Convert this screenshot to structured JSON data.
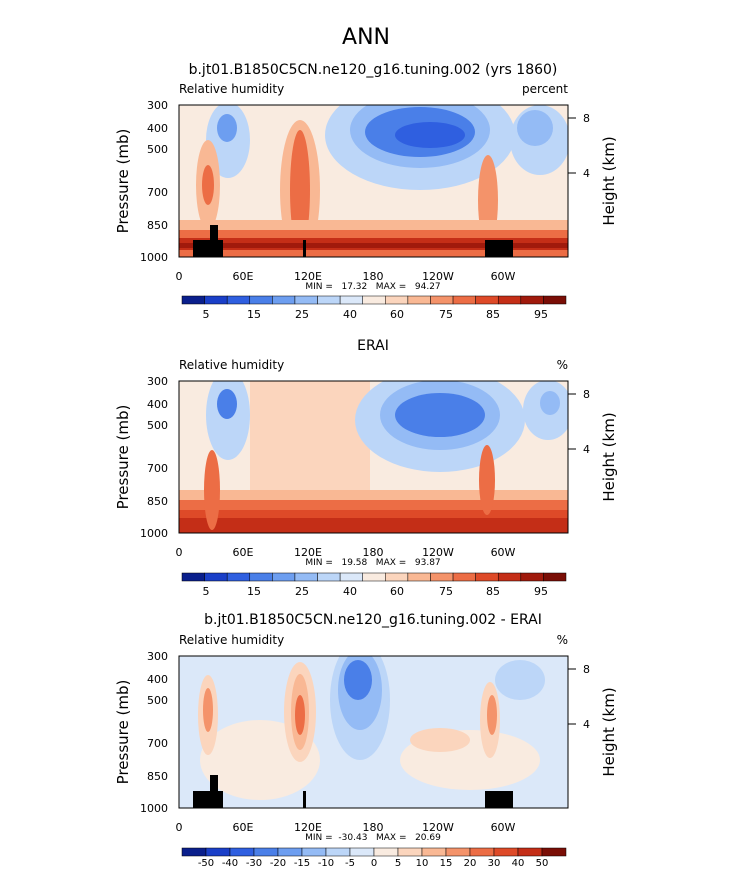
{
  "figure_title": "ANN",
  "chart_data": [
    {
      "type": "contour",
      "title": "b.jt01.B1850C5CN.ne120_g16.tuning.002 (yrs 1860)",
      "left_label": "Relative humidity",
      "right_label": "percent",
      "ylabel": "Pressure (mb)",
      "ylabel2": "Height (km)",
      "xticks": [
        "0",
        "60E",
        "120E",
        "180",
        "120W",
        "60W"
      ],
      "yticks": [
        "300",
        "400",
        "500",
        "700",
        "850",
        "1000"
      ],
      "yticks2": [
        "8",
        "4"
      ],
      "min_max": "MIN =   17.32   MAX =   94.27",
      "colorbar": {
        "labels": [
          "5",
          "15",
          "25",
          "40",
          "60",
          "75",
          "85",
          "95"
        ],
        "colors": [
          "#0a1f8c",
          "#1a3fc8",
          "#2f5fe0",
          "#4a7fe8",
          "#6d9ef0",
          "#94bbf5",
          "#bcd6f8",
          "#dbe8f9",
          "#f9ebe0",
          "#fbd5bd",
          "#f9b894",
          "#f4936a",
          "#ec6d45",
          "#de4a28",
          "#c42e17",
          "#a01a0c",
          "#7a0e06"
        ]
      }
    },
    {
      "type": "contour",
      "title": "ERAI",
      "left_label": "Relative humidity",
      "right_label": "%",
      "ylabel": "Pressure (mb)",
      "ylabel2": "Height (km)",
      "xticks": [
        "0",
        "60E",
        "120E",
        "180",
        "120W",
        "60W"
      ],
      "yticks": [
        "300",
        "400",
        "500",
        "700",
        "850",
        "1000"
      ],
      "yticks2": [
        "8",
        "4"
      ],
      "min_max": "MIN =   19.58   MAX =   93.87",
      "colorbar": {
        "labels": [
          "5",
          "15",
          "25",
          "40",
          "60",
          "75",
          "85",
          "95"
        ],
        "colors": [
          "#0a1f8c",
          "#1a3fc8",
          "#2f5fe0",
          "#4a7fe8",
          "#6d9ef0",
          "#94bbf5",
          "#bcd6f8",
          "#dbe8f9",
          "#f9ebe0",
          "#fbd5bd",
          "#f9b894",
          "#f4936a",
          "#ec6d45",
          "#de4a28",
          "#c42e17",
          "#a01a0c",
          "#7a0e06"
        ]
      }
    },
    {
      "type": "contour",
      "title": "b.jt01.B1850C5CN.ne120_g16.tuning.002 - ERAI",
      "left_label": "Relative humidity",
      "right_label": "%",
      "ylabel": "Pressure (mb)",
      "ylabel2": "Height (km)",
      "xticks": [
        "0",
        "60E",
        "120E",
        "180",
        "120W",
        "60W"
      ],
      "yticks": [
        "300",
        "400",
        "500",
        "700",
        "850",
        "1000"
      ],
      "yticks2": [
        "8",
        "4"
      ],
      "min_max": "MIN =  -30.43   MAX =   20.69",
      "colorbar": {
        "labels": [
          "-50",
          "-40",
          "-30",
          "-20",
          "-15",
          "-10",
          "-5",
          "0",
          "5",
          "10",
          "15",
          "20",
          "30",
          "40",
          "50"
        ],
        "colors": [
          "#0a1f8c",
          "#1a3fc8",
          "#2f5fe0",
          "#4a7fe8",
          "#6d9ef0",
          "#94bbf5",
          "#bcd6f8",
          "#dbe8f9",
          "#f9ebe0",
          "#fbd5bd",
          "#f9b894",
          "#f4936a",
          "#ec6d45",
          "#de4a28",
          "#c42e17",
          "#7a0e06"
        ]
      }
    }
  ]
}
